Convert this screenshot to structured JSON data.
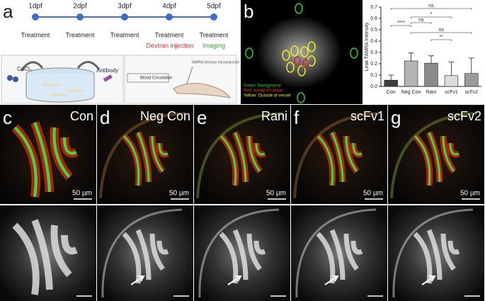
{
  "panel_a": {
    "label": "a",
    "timeline": [
      "1dpf",
      "2dpf",
      "3dpf",
      "4dpf",
      "5dpf"
    ],
    "steps": [
      "Treatment",
      "Treatment",
      "Treatment",
      "Treatment",
      "Treatment"
    ],
    "injection": "Dextran injection",
    "imaging": "Imaging",
    "cocl2": "CoCl₂",
    "antibody": "Antibody",
    "blood": "Blood Circulation",
    "tamra": "TAMRA-Dextran microinjection"
  },
  "panel_b": {
    "label": "b",
    "legend": [
      "Green: Background",
      "Red: Inside of vessel",
      "Yellow: Outside of vessel"
    ]
  },
  "chart_data": {
    "type": "bar",
    "y_label": "Leak TAMRA Intensity",
    "categories": [
      "Con",
      "Neg Con",
      "Rani",
      "scFv1",
      "scFv2"
    ],
    "values": [
      0.055,
      0.225,
      0.205,
      0.095,
      0.115
    ],
    "errors": [
      0.045,
      0.07,
      0.065,
      0.12,
      0.135
    ],
    "colors": [
      "#3d3d3d",
      "#b5b5b5",
      "#8a8a8a",
      "#dcdcdc",
      "#9a9a9a"
    ],
    "ylim": [
      0,
      0.7
    ],
    "yticks": [
      {
        "value": 0,
        "label": "0.0"
      },
      0.1,
      0.2,
      0.3,
      0.4,
      0.5,
      0.6,
      0.7
    ],
    "significance": [
      "ns",
      "*",
      "****",
      "ns",
      "ns",
      "**"
    ]
  },
  "panels": [
    {
      "label": "c",
      "title": "Con",
      "scale": "50 µm"
    },
    {
      "label": "d",
      "title": "Neg Con",
      "scale": "50 µm"
    },
    {
      "label": "e",
      "title": "Rani",
      "scale": "50 µm"
    },
    {
      "label": "f",
      "title": "scFv1",
      "scale": "50 µm"
    },
    {
      "label": "g",
      "title": "scFv2",
      "scale": "50 µm"
    }
  ]
}
